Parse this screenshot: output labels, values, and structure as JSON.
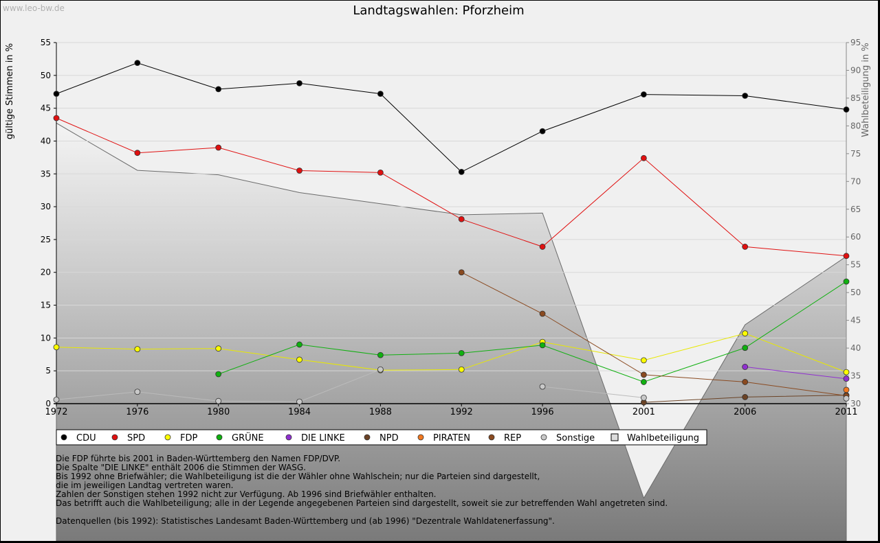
{
  "watermark": "www.leo-bw.de",
  "chart_data": {
    "type": "line",
    "title": "Landtagswahlen: Pforzheim",
    "ylabel": "gültige Stimmen in %",
    "y2label": "Wahlbeteiligung in %",
    "ylim": [
      0,
      55
    ],
    "y2lim": [
      30,
      95
    ],
    "yticks": [
      0,
      5,
      10,
      15,
      20,
      25,
      30,
      35,
      40,
      45,
      50,
      55
    ],
    "y2ticks": [
      30,
      35,
      40,
      45,
      50,
      55,
      60,
      65,
      70,
      75,
      80,
      85,
      90,
      95
    ],
    "categories": [
      "1972",
      "1976",
      "1980",
      "1984",
      "1988",
      "1992",
      "1996",
      "2001",
      "2006",
      "2011"
    ],
    "category_positions": [
      1972,
      1976,
      1980,
      1984,
      1988,
      1992,
      1996,
      2001,
      2006,
      2011
    ],
    "series": [
      {
        "name": "CDU",
        "color": "#000000",
        "line": "#000000",
        "values": [
          47.2,
          51.9,
          47.9,
          48.8,
          47.2,
          35.3,
          41.5,
          47.1,
          46.9,
          44.8
        ]
      },
      {
        "name": "SPD",
        "color": "#e01010",
        "line": "#e01010",
        "values": [
          43.5,
          38.2,
          39.0,
          35.5,
          35.2,
          28.1,
          23.9,
          37.4,
          23.9,
          22.5
        ]
      },
      {
        "name": "FDP",
        "color": "#ffff00",
        "line": "#e8e800",
        "values": [
          8.6,
          8.3,
          8.4,
          6.7,
          5.1,
          5.2,
          9.4,
          6.6,
          10.7,
          4.8
        ]
      },
      {
        "name": "GRÜNE",
        "color": "#10b010",
        "line": "#10b010",
        "values": [
          null,
          null,
          4.5,
          9.0,
          7.4,
          7.7,
          8.9,
          3.3,
          8.5,
          18.6
        ]
      },
      {
        "name": "DIE LINKE",
        "color": "#9030d0",
        "line": "#9030d0",
        "values": [
          null,
          null,
          null,
          null,
          null,
          null,
          null,
          null,
          5.6,
          3.8
        ]
      },
      {
        "name": "NPD",
        "color": "#6b4326",
        "line": "#6b4326",
        "values": [
          null,
          null,
          null,
          null,
          null,
          null,
          null,
          0.2,
          1.0,
          1.3
        ]
      },
      {
        "name": "PIRATEN",
        "color": "#f07820",
        "line": "#f07820",
        "values": [
          null,
          null,
          null,
          null,
          null,
          null,
          null,
          null,
          null,
          2.1
        ]
      },
      {
        "name": "REP",
        "color": "#8a4a20",
        "line": "#8a4a20",
        "values": [
          null,
          null,
          null,
          null,
          null,
          20.0,
          13.7,
          4.4,
          3.3,
          1.2
        ]
      },
      {
        "name": "Sonstige",
        "color": "#c8c8c8",
        "line": "#bbbbbb",
        "values": [
          0.6,
          1.8,
          0.4,
          0.3,
          5.2,
          null,
          2.6,
          0.9,
          null,
          0.8
        ]
      }
    ],
    "turnout": {
      "name": "Wahlbeteiligung",
      "values": [
        80.5,
        72.0,
        71.2,
        68.0,
        66.0,
        64.0,
        64.3,
        13.0,
        44.2,
        56.5
      ]
    }
  },
  "notes": [
    "Die FDP führte bis 2001 in Baden-Württemberg den Namen FDP/DVP.",
    "Die Spalte \"DIE LINKE\" enthält 2006 die Stimmen der WASG.",
    "Bis 1992 ohne Briefwähler; die Wahlbeteiligung ist die der Wähler ohne Wahlschein; nur die Parteien sind dargestellt,",
    "die im jeweiligen Landtag vertreten waren.",
    "Zahlen der Sonstigen stehen 1992 nicht zur Verfügung. Ab 1996 sind Briefwähler enthalten.",
    "Das betrifft auch die Wahlbeteiligung; alle in der Legende angegebenen Parteien sind dargestellt, soweit sie zur betreffenden Wahl angetreten sind.",
    "",
    "Datenquellen (bis 1992): Statistisches Landesamt Baden-Württemberg und (ab 1996) \"Dezentrale Wahldatenerfassung\"."
  ]
}
